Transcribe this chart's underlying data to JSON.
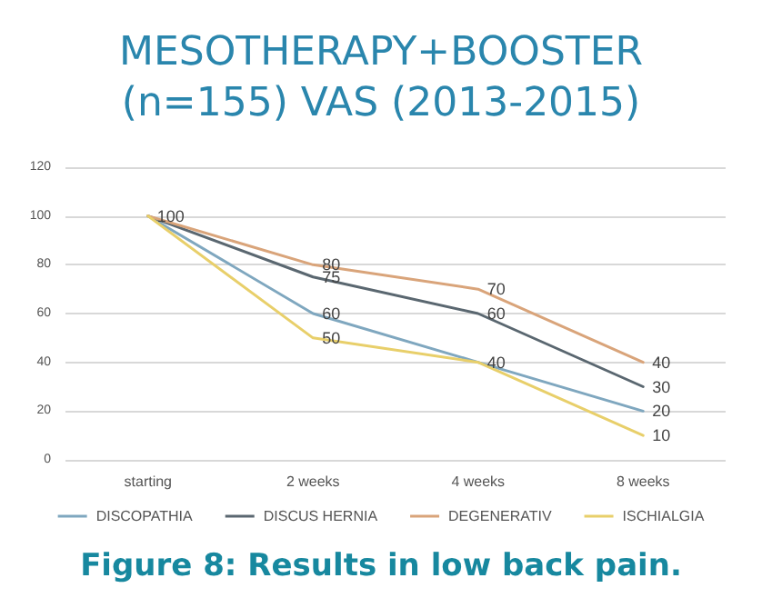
{
  "chart_data": {
    "type": "line",
    "title": "MESOTHERAPY+BOOSTER\n(n=155) VAS (2013-2015)",
    "annotations": [
      "Figure 8: Results in low back pain."
    ],
    "categories": [
      "starting",
      "2 weeks",
      "4 weeks",
      "8 weeks"
    ],
    "series": [
      {
        "name": "DISCOPATHIA",
        "color": "#7fa7bf",
        "values": [
          100,
          60,
          40,
          20
        ],
        "value_labels": [
          null,
          "60",
          "40",
          "20"
        ]
      },
      {
        "name": "DISCUS HERNIA",
        "color": "#5a6770",
        "values": [
          100,
          75,
          60,
          30
        ],
        "value_labels": [
          null,
          "75",
          "60",
          "30"
        ]
      },
      {
        "name": "DEGENERATIV",
        "color": "#d9a47a",
        "values": [
          100,
          80,
          70,
          40
        ],
        "value_labels": [
          "100",
          "80",
          "70",
          "40"
        ]
      },
      {
        "name": "ISCHIALGIA",
        "color": "#e8cf6a",
        "values": [
          100,
          50,
          40,
          10
        ],
        "value_labels": [
          null,
          "50",
          null,
          "10"
        ]
      }
    ],
    "ylim": [
      0,
      120
    ],
    "yticks": [
      0,
      20,
      40,
      60,
      80,
      100,
      120
    ],
    "grid": "y",
    "legend": "bottom",
    "marker": "none",
    "line_style": "solid"
  }
}
